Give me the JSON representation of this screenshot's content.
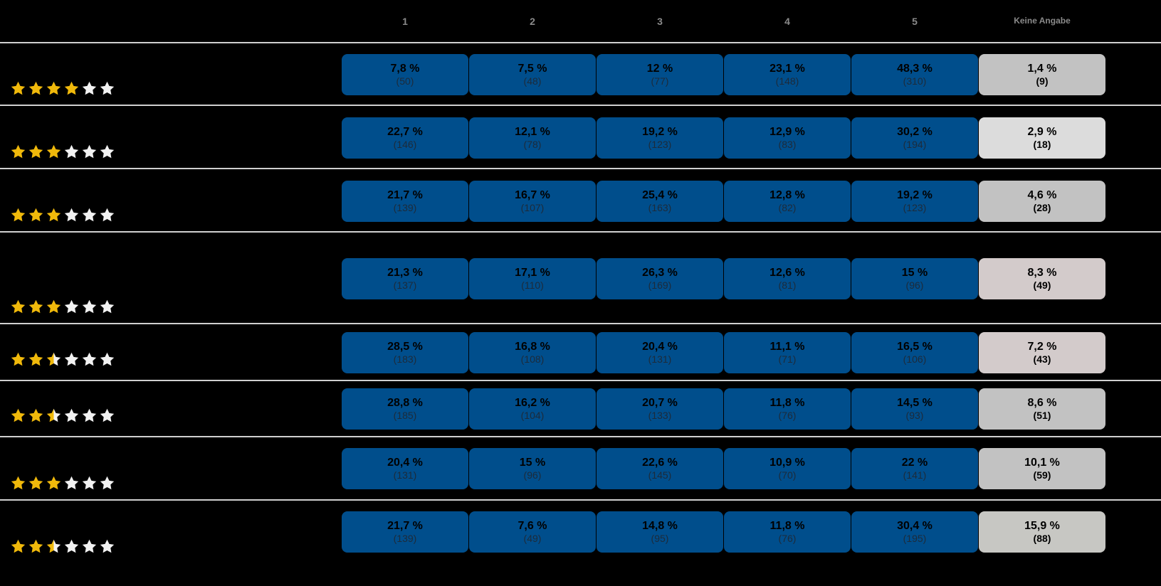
{
  "chart_data": {
    "type": "table",
    "columns": [
      "1",
      "2",
      "3",
      "4",
      "5",
      "Keine Angabe"
    ],
    "rows": [
      {
        "rating_stars": 4,
        "cells": [
          {
            "pct": "7,8 %",
            "n": "(50)"
          },
          {
            "pct": "7,5 %",
            "n": "(48)"
          },
          {
            "pct": "12 %",
            "n": "(77)"
          },
          {
            "pct": "23,1 %",
            "n": "(148)"
          },
          {
            "pct": "48,3 %",
            "n": "(310)"
          },
          {
            "pct": "1,4 %",
            "n": "(9)"
          }
        ]
      },
      {
        "rating_stars": 3,
        "cells": [
          {
            "pct": "22,7 %",
            "n": "(146)"
          },
          {
            "pct": "12,1 %",
            "n": "(78)"
          },
          {
            "pct": "19,2 %",
            "n": "(123)"
          },
          {
            "pct": "12,9 %",
            "n": "(83)"
          },
          {
            "pct": "30,2 %",
            "n": "(194)"
          },
          {
            "pct": "2,9 %",
            "n": "(18)"
          }
        ]
      },
      {
        "rating_stars": 3,
        "cells": [
          {
            "pct": "21,7 %",
            "n": "(139)"
          },
          {
            "pct": "16,7 %",
            "n": "(107)"
          },
          {
            "pct": "25,4 %",
            "n": "(163)"
          },
          {
            "pct": "12,8 %",
            "n": "(82)"
          },
          {
            "pct": "19,2 %",
            "n": "(123)"
          },
          {
            "pct": "4,6 %",
            "n": "(28)"
          }
        ]
      },
      {
        "rating_stars": 3,
        "cells": [
          {
            "pct": "21,3 %",
            "n": "(137)"
          },
          {
            "pct": "17,1 %",
            "n": "(110)"
          },
          {
            "pct": "26,3 %",
            "n": "(169)"
          },
          {
            "pct": "12,6 %",
            "n": "(81)"
          },
          {
            "pct": "15 %",
            "n": "(96)"
          },
          {
            "pct": "8,3 %",
            "n": "(49)"
          }
        ]
      },
      {
        "rating_stars": 2.5,
        "cells": [
          {
            "pct": "28,5 %",
            "n": "(183)"
          },
          {
            "pct": "16,8 %",
            "n": "(108)"
          },
          {
            "pct": "20,4 %",
            "n": "(131)"
          },
          {
            "pct": "11,1 %",
            "n": "(71)"
          },
          {
            "pct": "16,5 %",
            "n": "(106)"
          },
          {
            "pct": "7,2 %",
            "n": "(43)"
          }
        ]
      },
      {
        "rating_stars": 2.5,
        "cells": [
          {
            "pct": "28,8 %",
            "n": "(185)"
          },
          {
            "pct": "16,2 %",
            "n": "(104)"
          },
          {
            "pct": "20,7 %",
            "n": "(133)"
          },
          {
            "pct": "11,8 %",
            "n": "(76)"
          },
          {
            "pct": "14,5 %",
            "n": "(93)"
          },
          {
            "pct": "8,6 %",
            "n": "(51)"
          }
        ]
      },
      {
        "rating_stars": 3,
        "cells": [
          {
            "pct": "20,4 %",
            "n": "(131)"
          },
          {
            "pct": "15 %",
            "n": "(96)"
          },
          {
            "pct": "22,6 %",
            "n": "(145)"
          },
          {
            "pct": "10,9 %",
            "n": "(70)"
          },
          {
            "pct": "22 %",
            "n": "(141)"
          },
          {
            "pct": "10,1 %",
            "n": "(59)"
          }
        ]
      },
      {
        "rating_stars": 2.5,
        "cells": [
          {
            "pct": "21,7 %",
            "n": "(139)"
          },
          {
            "pct": "7,6 %",
            "n": "(49)"
          },
          {
            "pct": "14,8 %",
            "n": "(95)"
          },
          {
            "pct": "11,8 %",
            "n": "(76)"
          },
          {
            "pct": "30,4 %",
            "n": "(195)"
          },
          {
            "pct": "15,9 %",
            "n": "(88)"
          }
        ]
      }
    ]
  },
  "colors": {
    "cell_blue": "#004e8c",
    "cell_gray": "#c2c2c2",
    "cell_gray_light": "#dcdcdc",
    "cell_gray_pink": "#d3cbcb",
    "star_filled": "#f0b90b",
    "star_empty": "#f2f2f2",
    "header_text": "#8a8a8a",
    "divider": "#d0d0d0"
  }
}
